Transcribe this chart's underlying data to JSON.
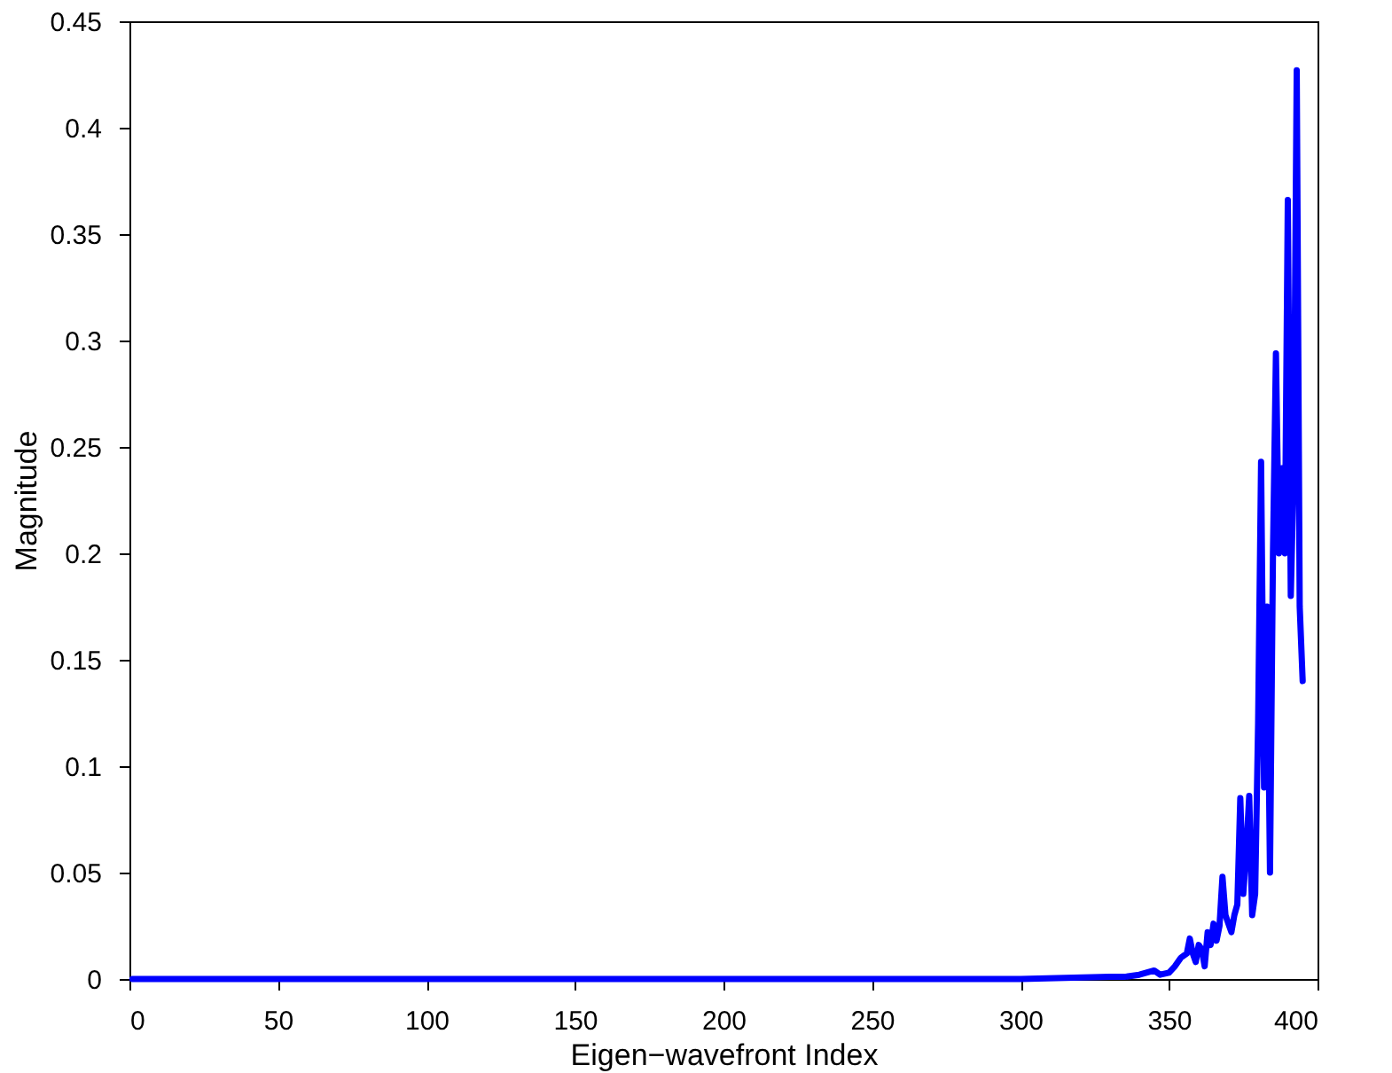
{
  "chart_data": {
    "type": "line",
    "xlabel": "Eigen−wavefront Index",
    "ylabel": "Magnitude",
    "xlim": [
      0,
      400
    ],
    "xticks": [
      0,
      50,
      100,
      150,
      200,
      250,
      300,
      350,
      400
    ],
    "ylim": [
      0,
      0.45
    ],
    "yticks": [
      0,
      0.05,
      0.1,
      0.15,
      0.2,
      0.25,
      0.3,
      0.35,
      0.4,
      0.45
    ],
    "grid": false,
    "legend": false,
    "marker": "none",
    "line_style": "solid",
    "series": [
      {
        "color": "#0000ff",
        "x": [
          1,
          100,
          200,
          300,
          330,
          335,
          340,
          345,
          347,
          350,
          352,
          354,
          356,
          357,
          358,
          359,
          360,
          361,
          362,
          363,
          364,
          365,
          366,
          367,
          368,
          369,
          370,
          371,
          372,
          373,
          374,
          375,
          376,
          377,
          378,
          379,
          380,
          381,
          382,
          383,
          384,
          385,
          386,
          387,
          388,
          389,
          390,
          391,
          392,
          393,
          394,
          395
        ],
        "values": [
          0,
          0,
          0,
          0,
          0.001,
          0.001,
          0.002,
          0.004,
          0.002,
          0.003,
          0.006,
          0.01,
          0.012,
          0.019,
          0.012,
          0.008,
          0.016,
          0.014,
          0.006,
          0.022,
          0.016,
          0.026,
          0.018,
          0.025,
          0.048,
          0.03,
          0.026,
          0.022,
          0.03,
          0.035,
          0.085,
          0.04,
          0.06,
          0.086,
          0.03,
          0.04,
          0.12,
          0.243,
          0.09,
          0.175,
          0.05,
          0.2,
          0.294,
          0.2,
          0.24,
          0.2,
          0.366,
          0.18,
          0.24,
          0.427,
          0.175,
          0.14
        ]
      }
    ]
  }
}
